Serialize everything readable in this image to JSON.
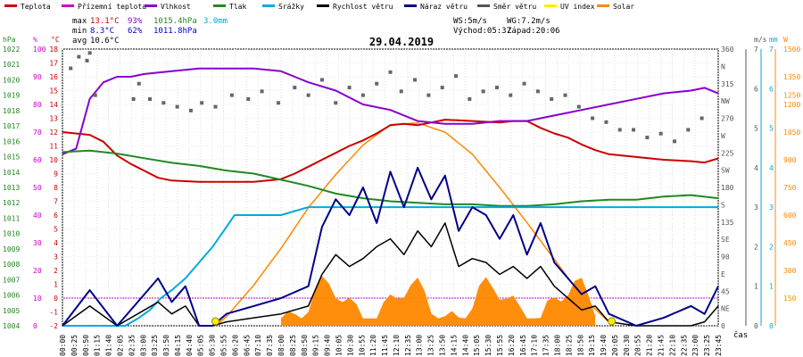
{
  "legend": [
    {
      "label": "Teplota",
      "color": "#cc0000"
    },
    {
      "label": "Přízemní teplota",
      "color": "#cc00cc"
    },
    {
      "label": "Vlhkost",
      "color": "#8800cc"
    },
    {
      "label": "Tlak",
      "color": "#228822"
    },
    {
      "label": "Srážky",
      "color": "#00aadd"
    },
    {
      "label": "Rychlost větru",
      "color": "#000000"
    },
    {
      "label": "Náraz větru",
      "color": "#000088"
    },
    {
      "label": "Směr větru",
      "color": "#555555"
    },
    {
      "label": "UV index",
      "color": "#ffee00"
    },
    {
      "label": "Solar",
      "color": "#ff8800"
    }
  ],
  "stats": {
    "max_label": "max",
    "max_temp": "13.1°C",
    "max_hum": "93%",
    "max_press": "1015.4hPa",
    "max_rain": "3.0mm",
    "min_label": "min",
    "min_temp": "8.3°C",
    "min_hum": "62%",
    "min_press": "1011.8hPa",
    "avg_label": "avg",
    "avg_temp": "10.6°C",
    "ws": "WS:5m/s",
    "wg": "WG:7.2m/s",
    "sunrise": "Východ:05:37",
    "sunset": "Západ:20:06"
  },
  "chart_data": {
    "type": "line",
    "title": "29.04.2019",
    "xlabel": "čas",
    "x_ticks": [
      "00:00",
      "00:25",
      "00:50",
      "01:15",
      "01:40",
      "02:05",
      "02:35",
      "03:00",
      "03:25",
      "03:50",
      "04:15",
      "04:40",
      "05:05",
      "05:30",
      "05:55",
      "06:20",
      "06:45",
      "07:10",
      "07:35",
      "08:00",
      "08:25",
      "08:50",
      "09:15",
      "09:40",
      "10:05",
      "10:30",
      "10:55",
      "11:20",
      "11:45",
      "12:10",
      "12:35",
      "13:00",
      "13:25",
      "13:50",
      "14:15",
      "14:40",
      "15:05",
      "15:30",
      "15:55",
      "16:20",
      "16:45",
      "17:10",
      "17:35",
      "18:00",
      "18:25",
      "18:50",
      "19:15",
      "19:40",
      "20:05",
      "20:30",
      "20:55",
      "21:20",
      "21:45",
      "22:10",
      "22:35",
      "23:00",
      "23:25",
      "23:45"
    ],
    "axes": {
      "hPa": {
        "label": "hPa",
        "ticks": [
          "1022",
          "1021",
          "1020",
          "1019",
          "1018",
          "1017",
          "1016",
          "1015",
          "1014",
          "1013",
          "1012",
          "1011",
          "1010",
          "1009",
          "1008",
          "1007",
          "1006",
          "1005",
          "1004"
        ]
      },
      "pct": {
        "label": "%",
        "ticks": [
          "100",
          "90",
          "80",
          "70",
          "60",
          "50",
          "40",
          "30",
          "20",
          "10",
          "0"
        ]
      },
      "degC": {
        "label": "°C",
        "ticks": [
          "18",
          "17",
          "16",
          "15",
          "14",
          "13",
          "12",
          "11",
          "10",
          "9",
          "8",
          "7",
          "6",
          "5",
          "4",
          "3",
          "2",
          "1",
          "0",
          "-1",
          "-2"
        ]
      },
      "dir": {
        "ticks": [
          "360",
          "N",
          "315",
          "NW",
          "270",
          "W",
          "225",
          "SW",
          "180",
          "S",
          "135",
          "SE",
          "90",
          "E",
          "45",
          "NE",
          "0"
        ]
      },
      "ms": {
        "label": "m/s",
        "ticks": [
          "7",
          "6",
          "5",
          "4",
          "3",
          "2",
          "1",
          "0"
        ]
      },
      "mm": {
        "label": "mm",
        "ticks": [
          "7",
          "6",
          "5",
          "4",
          "3",
          "2",
          "1",
          "0"
        ]
      },
      "W": {
        "label": "W",
        "ticks": [
          "1500",
          "1350",
          "1250",
          "1200",
          "1050",
          "900",
          "750",
          "600",
          "450",
          "300",
          "150"
        ]
      }
    },
    "series": [
      {
        "name": "Teplota",
        "unit": "°C",
        "color": "#cc0000",
        "x": [
          0,
          1,
          1.5,
          2,
          2.5,
          3,
          3.5,
          4,
          5,
          6,
          7,
          8,
          8.5,
          9,
          9.5,
          10,
          10.5,
          11,
          11.5,
          12,
          12.5,
          13,
          14,
          15,
          16,
          16.5,
          17,
          17.5,
          18,
          18.5,
          19,
          19.5,
          20,
          21,
          22,
          23,
          23.5,
          24
        ],
        "y": [
          12.0,
          11.8,
          11.3,
          10.3,
          9.7,
          9.2,
          8.7,
          8.5,
          8.4,
          8.4,
          8.4,
          8.6,
          9.0,
          9.5,
          10.0,
          10.5,
          11.0,
          11.4,
          11.9,
          12.5,
          12.6,
          12.5,
          12.9,
          12.8,
          12.7,
          12.8,
          12.8,
          12.3,
          11.9,
          11.6,
          11.1,
          10.7,
          10.4,
          10.2,
          10.0,
          9.9,
          9.8,
          10.1
        ]
      },
      {
        "name": "Vlhkost",
        "unit": "%",
        "color": "#8800cc",
        "x": [
          0,
          0.5,
          1,
          1.5,
          2,
          2.5,
          3,
          4,
          5,
          6,
          7,
          8,
          8.5,
          9,
          10,
          11,
          12,
          13,
          14,
          15,
          16,
          17,
          18,
          19,
          20,
          21,
          22,
          23,
          23.5,
          24
        ],
        "y": [
          62,
          64,
          82,
          88,
          90,
          90,
          91,
          92,
          93,
          93,
          93,
          92,
          90,
          88,
          85,
          80,
          78,
          74,
          73,
          73,
          74,
          74,
          76,
          78,
          80,
          82,
          84,
          85,
          86,
          84
        ]
      },
      {
        "name": "Tlak",
        "unit": "hPa",
        "color": "#228822",
        "x": [
          0,
          1,
          2,
          3,
          4,
          5,
          6,
          7,
          8,
          9,
          10,
          11,
          12,
          13,
          14,
          15,
          16,
          17,
          18,
          19,
          20,
          21,
          22,
          23,
          24
        ],
        "y": [
          1015.3,
          1015.4,
          1015.2,
          1014.9,
          1014.6,
          1014.4,
          1014.1,
          1013.9,
          1013.5,
          1013.1,
          1012.6,
          1012.3,
          1012.1,
          1012.0,
          1011.9,
          1011.9,
          1011.8,
          1011.8,
          1011.9,
          1012.1,
          1012.2,
          1012.2,
          1012.4,
          1012.5,
          1012.3
        ]
      },
      {
        "name": "Srážky",
        "unit": "mm",
        "color": "#00aadd",
        "x": [
          0,
          2.3,
          2.8,
          3.2,
          3.6,
          4.0,
          4.5,
          5.0,
          5.5,
          6.0,
          6.3,
          6.5,
          8.0,
          9.0,
          10.0,
          11.0,
          12.0,
          24.0
        ],
        "y": [
          0,
          0,
          0.2,
          0.4,
          0.7,
          0.9,
          1.2,
          1.6,
          2.0,
          2.5,
          2.8,
          2.8,
          2.8,
          3.0,
          3.0,
          3.0,
          3.0,
          3.0
        ]
      },
      {
        "name": "Rychlost větru",
        "unit": "m/s",
        "color": "#000000",
        "x": [
          0,
          1,
          2,
          3,
          3.5,
          4,
          4.5,
          5,
          5.5,
          6,
          7,
          8,
          9,
          9.5,
          10,
          10.5,
          11,
          11.5,
          12,
          12.5,
          13,
          13.5,
          14,
          14.5,
          15,
          15.5,
          16,
          16.5,
          17,
          17.5,
          18,
          18.5,
          19,
          19.5,
          20,
          21,
          22,
          23,
          23.5,
          24
        ],
        "y": [
          0,
          0.5,
          0,
          0.4,
          0.6,
          0.3,
          0.5,
          0,
          0,
          0.1,
          0.2,
          0.3,
          0.5,
          1.3,
          1.8,
          1.5,
          1.7,
          2.0,
          2.2,
          1.8,
          2.4,
          2.0,
          2.6,
          1.5,
          1.7,
          1.6,
          1.3,
          1.5,
          1.2,
          1.5,
          1.0,
          0.7,
          0.4,
          0.5,
          0.1,
          0,
          0,
          0,
          0.1,
          0.5
        ]
      },
      {
        "name": "Náraz větru",
        "unit": "m/s",
        "color": "#000088",
        "x": [
          0,
          1,
          2,
          3,
          3.5,
          4,
          4.5,
          5,
          5.5,
          6,
          7,
          8,
          9,
          9.5,
          10,
          10.5,
          11,
          11.5,
          12,
          12.5,
          13,
          13.5,
          14,
          14.5,
          15,
          15.5,
          16,
          16.5,
          17,
          17.5,
          18,
          18.5,
          19,
          19.5,
          20,
          21,
          22,
          23,
          23.5,
          24
        ],
        "y": [
          0,
          0.9,
          0,
          0.8,
          1.2,
          0.6,
          1.0,
          0,
          0,
          0.3,
          0.5,
          0.7,
          1.0,
          2.5,
          3.2,
          2.8,
          3.5,
          2.6,
          3.9,
          3.0,
          4.0,
          3.2,
          3.8,
          2.4,
          3.0,
          2.8,
          2.2,
          2.8,
          1.8,
          2.6,
          1.6,
          1.2,
          0.8,
          1.0,
          0.3,
          0,
          0.2,
          0.5,
          0.3,
          1.0
        ]
      },
      {
        "name": "Solar",
        "unit": "W",
        "color": "#ff8800",
        "x": [
          5.62,
          6,
          7,
          8,
          9,
          10,
          11,
          12,
          13,
          14,
          15,
          16,
          17,
          18,
          19,
          20,
          20.1
        ],
        "y": [
          0,
          50,
          220,
          420,
          640,
          820,
          980,
          1090,
          1100,
          1050,
          930,
          750,
          560,
          360,
          160,
          20,
          0
        ]
      }
    ],
    "wind_direction_deg": [
      {
        "x": 0.3,
        "y": 335
      },
      {
        "x": 0.6,
        "y": 350
      },
      {
        "x": 0.9,
        "y": 345
      },
      {
        "x": 1.0,
        "y": 355
      },
      {
        "x": 1.2,
        "y": 300
      },
      {
        "x": 2.6,
        "y": 295
      },
      {
        "x": 2.8,
        "y": 315
      },
      {
        "x": 3.2,
        "y": 295
      },
      {
        "x": 3.7,
        "y": 290
      },
      {
        "x": 4.2,
        "y": 285
      },
      {
        "x": 4.7,
        "y": 280
      },
      {
        "x": 5.1,
        "y": 290
      },
      {
        "x": 5.6,
        "y": 285
      },
      {
        "x": 6.2,
        "y": 300
      },
      {
        "x": 6.8,
        "y": 295
      },
      {
        "x": 7.3,
        "y": 305
      },
      {
        "x": 7.9,
        "y": 290
      },
      {
        "x": 8.5,
        "y": 310
      },
      {
        "x": 9.0,
        "y": 300
      },
      {
        "x": 9.5,
        "y": 320
      },
      {
        "x": 10.0,
        "y": 290
      },
      {
        "x": 10.5,
        "y": 310
      },
      {
        "x": 11.0,
        "y": 300
      },
      {
        "x": 11.5,
        "y": 315
      },
      {
        "x": 12.0,
        "y": 330
      },
      {
        "x": 12.4,
        "y": 305
      },
      {
        "x": 12.9,
        "y": 320
      },
      {
        "x": 13.4,
        "y": 300
      },
      {
        "x": 13.9,
        "y": 310
      },
      {
        "x": 14.4,
        "y": 325
      },
      {
        "x": 14.9,
        "y": 295
      },
      {
        "x": 15.4,
        "y": 305
      },
      {
        "x": 15.9,
        "y": 310
      },
      {
        "x": 16.4,
        "y": 300
      },
      {
        "x": 16.9,
        "y": 315
      },
      {
        "x": 17.4,
        "y": 305
      },
      {
        "x": 17.9,
        "y": 295
      },
      {
        "x": 18.4,
        "y": 300
      },
      {
        "x": 18.9,
        "y": 285
      },
      {
        "x": 19.4,
        "y": 270
      },
      {
        "x": 19.9,
        "y": 265
      },
      {
        "x": 20.4,
        "y": 255
      },
      {
        "x": 20.9,
        "y": 255
      },
      {
        "x": 21.4,
        "y": 245
      },
      {
        "x": 21.9,
        "y": 250
      },
      {
        "x": 22.4,
        "y": 240
      },
      {
        "x": 22.9,
        "y": 255
      },
      {
        "x": 23.4,
        "y": 270
      }
    ],
    "reference_lines": [
      {
        "name": "Přízemní teplota",
        "axis": "pct",
        "y": 10,
        "color": "#cc00cc"
      }
    ]
  }
}
